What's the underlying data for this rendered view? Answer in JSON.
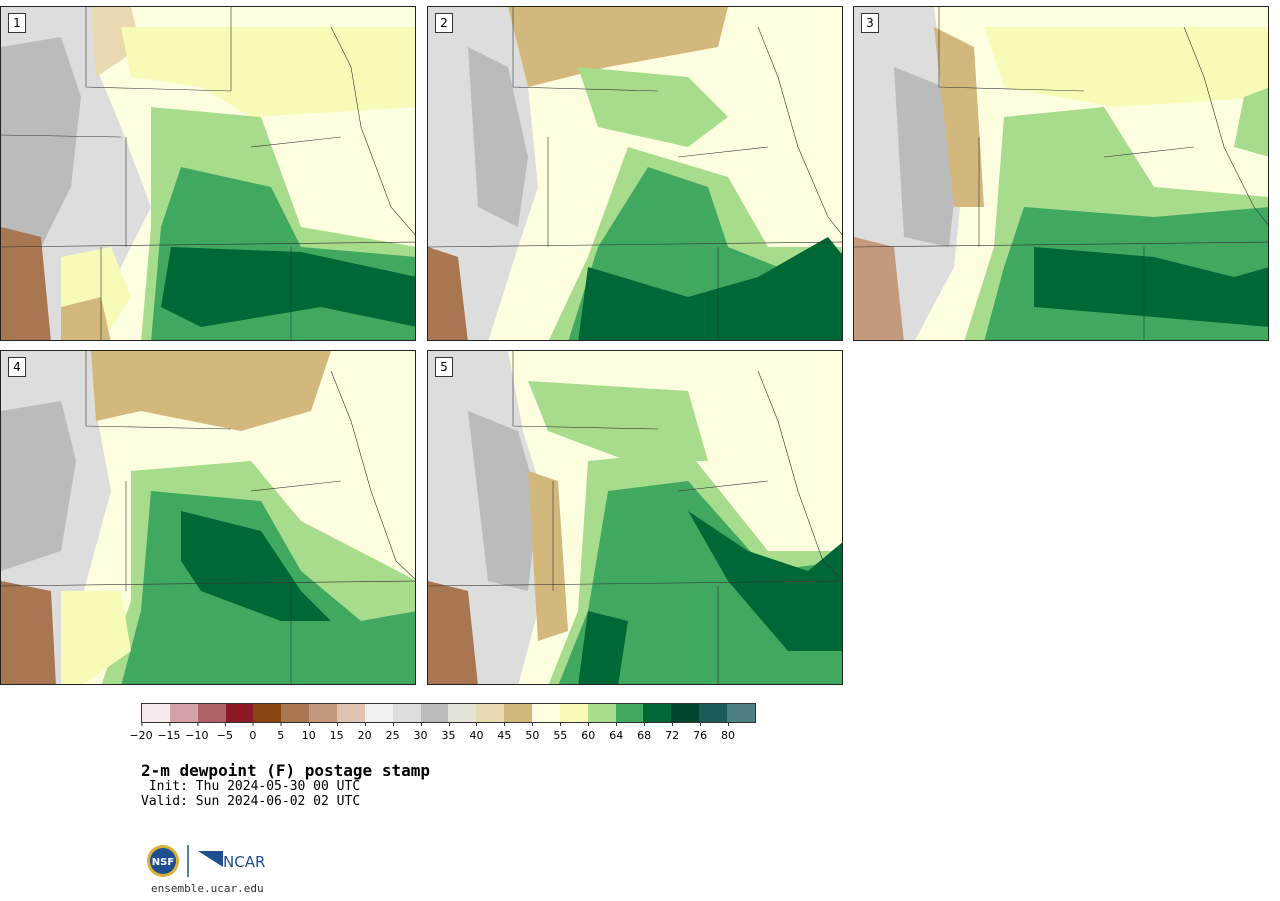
{
  "panels": [
    {
      "label": "1"
    },
    {
      "label": "2"
    },
    {
      "label": "3"
    },
    {
      "label": "4"
    },
    {
      "label": "5"
    }
  ],
  "colorbar": {
    "colors": [
      "#f6eaea",
      "#d4a1a8",
      "#b0616a",
      "#8c1a24",
      "#8b4513",
      "#a87650",
      "#c49a7e",
      "#e0c3b0",
      "#f1f1f1",
      "#dddddd",
      "#bbbbbb",
      "#e3e3d8",
      "#e8d9b0",
      "#d2b87c",
      "#fdfde0",
      "#f8fbb8",
      "#a7dc8c",
      "#41a85f",
      "#006837",
      "#00452a",
      "#1b5b5a",
      "#4f7f82"
    ],
    "ticks": [
      "−20",
      "−15",
      "−10",
      "−5",
      "0",
      "5",
      "10",
      "15",
      "20",
      "25",
      "30",
      "35",
      "40",
      "45",
      "50",
      "55",
      "60",
      "64",
      "68",
      "72",
      "76",
      "80"
    ]
  },
  "title": "2-m dewpoint (F) postage stamp",
  "init": " Init: Thu 2024-05-30 00 UTC",
  "valid": "Valid: Sun 2024-06-02 02 UTC",
  "logos": {
    "left": "NSF",
    "right": "NCAR"
  },
  "website": "ensemble.ucar.edu"
}
